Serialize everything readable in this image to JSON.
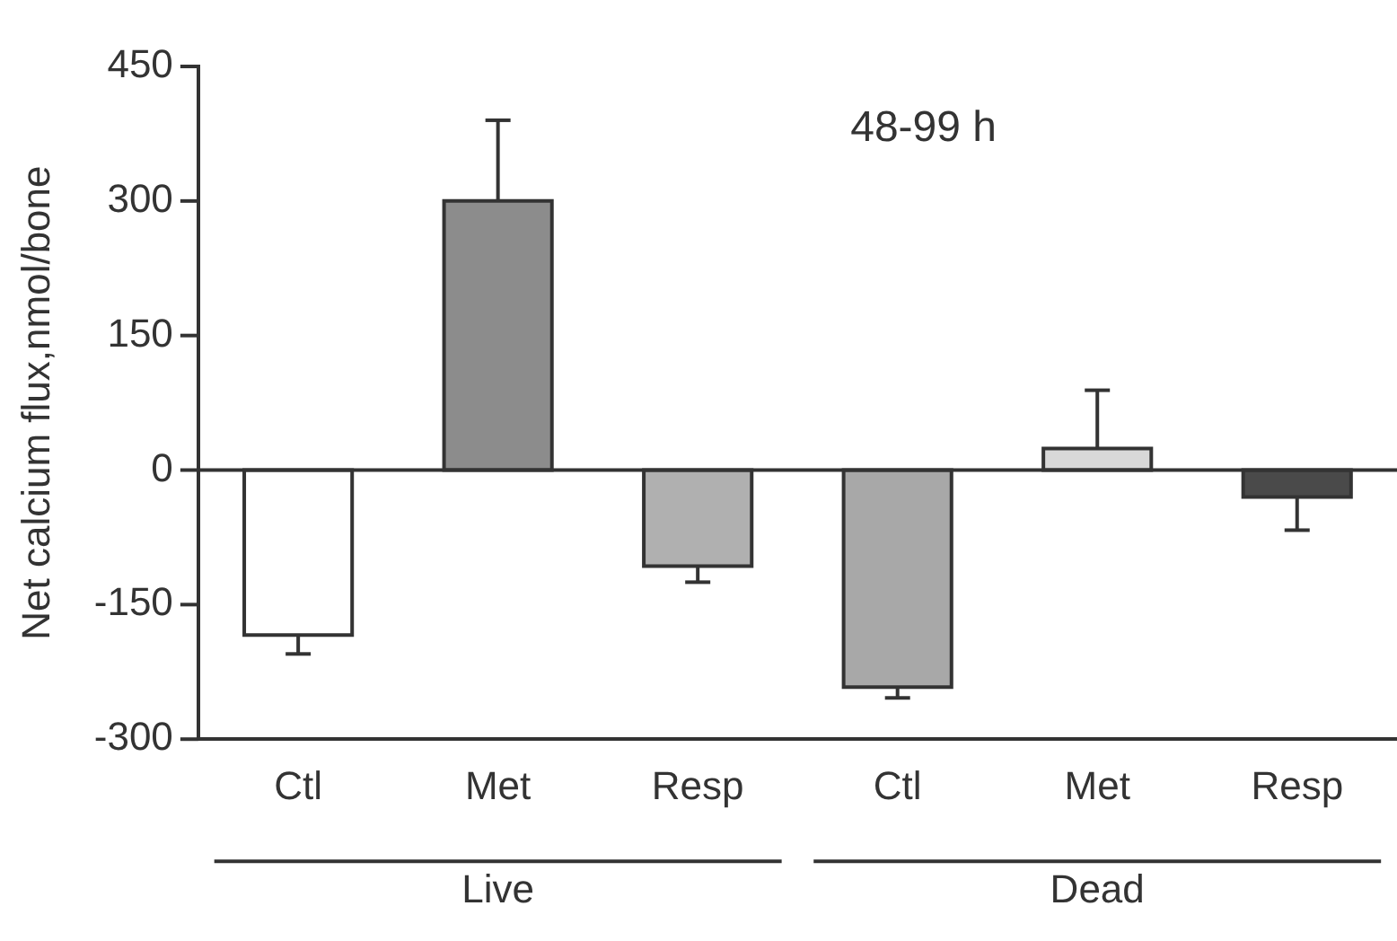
{
  "chart_data": {
    "type": "bar",
    "title": "48-99 h",
    "ylabel": "Net calcium flux,nmol/bone",
    "categories": [
      "Ctl",
      "Met",
      "Resp",
      "Ctl",
      "Met",
      "Resp"
    ],
    "values": [
      -184,
      300,
      -107,
      -242,
      24,
      -30
    ],
    "errors": [
      [
        -205,
        -184
      ],
      [
        300,
        390
      ],
      [
        -125,
        -107
      ],
      [
        -254,
        -242
      ],
      [
        24,
        89
      ],
      [
        -67,
        -30
      ]
    ],
    "colors": [
      "#ffffff",
      "#8c8c8c",
      "#b0b0b0",
      "#a8a8a8",
      "#d8d8d8",
      "#4a4a4a"
    ],
    "ylim": [
      -300,
      450
    ],
    "yticks": [
      -300,
      -150,
      0,
      150,
      300,
      450
    ],
    "grid": false,
    "legend": false,
    "annotations": [
      "Live",
      "Dead"
    ],
    "ref_lines": [
      {
        "axis": "y",
        "value": 0
      }
    ]
  }
}
